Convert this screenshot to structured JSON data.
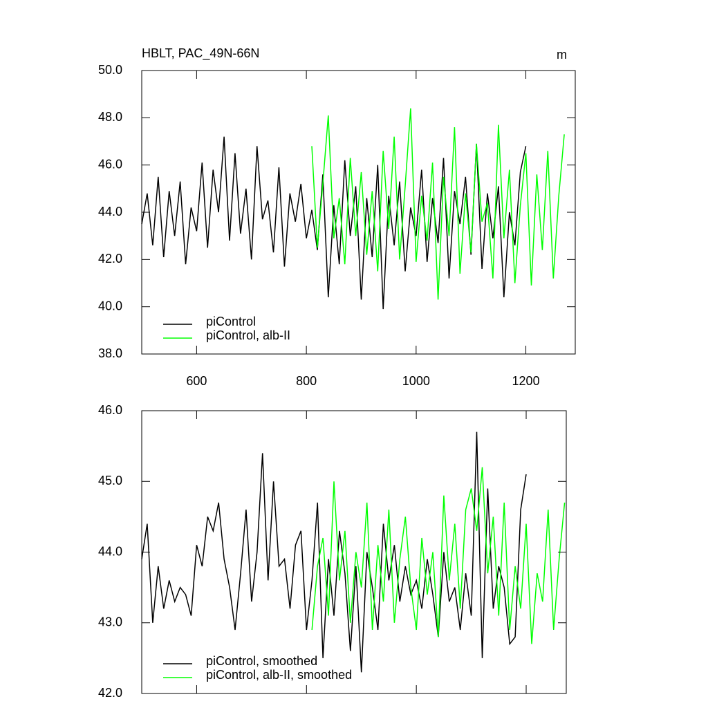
{
  "chart_data": [
    {
      "type": "line",
      "title": "HBLT, PAC_49N-66N",
      "units_label": "m",
      "xlim": [
        500,
        1290
      ],
      "xticks": [
        600,
        800,
        1000,
        1200
      ],
      "show_xtick_labels": true,
      "ylim": [
        38,
        50
      ],
      "yticks": [
        {
          "value": 38,
          "label": "38.0"
        },
        {
          "value": 40,
          "label": "40.0"
        },
        {
          "value": 42,
          "label": "42.0"
        },
        {
          "value": 44,
          "label": "44.0"
        },
        {
          "value": 46,
          "label": "46.0"
        },
        {
          "value": 48,
          "label": "48.0"
        },
        {
          "value": 50,
          "label": "50.0"
        }
      ],
      "legend": "lower left",
      "series": [
        {
          "name": "piControl",
          "color": "#000000",
          "x": [
            500,
            510,
            520,
            530,
            540,
            550,
            560,
            570,
            580,
            590,
            600,
            610,
            620,
            630,
            640,
            650,
            660,
            670,
            680,
            690,
            700,
            710,
            720,
            730,
            740,
            750,
            760,
            770,
            780,
            790,
            800,
            810,
            820,
            830,
            840,
            850,
            860,
            870,
            880,
            890,
            900,
            910,
            920,
            930,
            940,
            950,
            960,
            970,
            980,
            990,
            1000,
            1010,
            1020,
            1030,
            1040,
            1050,
            1060,
            1070,
            1080,
            1090,
            1100,
            1110,
            1120,
            1130,
            1140,
            1150,
            1160,
            1170,
            1180,
            1190,
            1200
          ],
          "values": [
            43.5,
            44.8,
            42.6,
            45.5,
            42.1,
            44.9,
            43.0,
            45.3,
            41.8,
            44.2,
            43.2,
            46.1,
            42.5,
            45.8,
            44.0,
            47.2,
            42.8,
            46.5,
            43.1,
            45.0,
            42.0,
            46.8,
            43.7,
            44.5,
            42.3,
            45.9,
            41.7,
            44.8,
            43.6,
            45.2,
            42.9,
            44.1,
            42.4,
            45.6,
            40.4,
            44.3,
            41.8,
            46.2,
            43.0,
            45.1,
            40.3,
            44.6,
            42.1,
            46.0,
            39.9,
            44.7,
            42.6,
            45.3,
            41.5,
            44.2,
            43.0,
            45.8,
            41.9,
            44.6,
            42.7,
            46.3,
            41.2,
            44.9,
            43.5,
            45.5,
            42.2,
            46.9,
            41.6,
            44.8,
            42.9,
            45.1,
            40.4,
            44.0,
            42.6,
            45.7,
            46.8
          ]
        },
        {
          "name": "piControl, alb-II",
          "color": "#00ff00",
          "x": [
            810,
            820,
            830,
            840,
            850,
            860,
            870,
            880,
            890,
            900,
            910,
            920,
            930,
            940,
            950,
            960,
            970,
            980,
            990,
            1000,
            1010,
            1020,
            1030,
            1040,
            1050,
            1060,
            1070,
            1080,
            1090,
            1100,
            1110,
            1120,
            1130,
            1140,
            1150,
            1160,
            1170,
            1180,
            1190,
            1200,
            1210,
            1220,
            1230,
            1240,
            1250,
            1260,
            1270
          ],
          "values": [
            46.8,
            42.5,
            45.2,
            48.1,
            42.9,
            44.6,
            41.8,
            46.3,
            43.0,
            45.7,
            42.2,
            44.9,
            41.5,
            46.6,
            43.3,
            47.2,
            42.0,
            45.1,
            48.4,
            41.9,
            44.7,
            42.8,
            46.1,
            40.3,
            45.5,
            43.0,
            47.6,
            41.4,
            44.8,
            42.3,
            46.9,
            43.6,
            44.4,
            41.2,
            47.7,
            42.9,
            45.8,
            41.0,
            44.3,
            46.5,
            40.9,
            45.6,
            42.4,
            46.6,
            41.2,
            44.7,
            47.3
          ]
        }
      ]
    },
    {
      "type": "line",
      "xlim": [
        500,
        1273
      ],
      "xticks": [
        600,
        800,
        1000,
        1200
      ],
      "show_xtick_labels": false,
      "ylim": [
        42,
        46
      ],
      "yticks": [
        {
          "value": 42,
          "label": "42.0"
        },
        {
          "value": 43,
          "label": "43.0"
        },
        {
          "value": 44,
          "label": "44.0"
        },
        {
          "value": 45,
          "label": "45.0"
        },
        {
          "value": 46,
          "label": "46.0"
        }
      ],
      "legend": "lower left",
      "series": [
        {
          "name": "piControl, smoothed",
          "color": "#000000",
          "x": [
            500,
            510,
            520,
            530,
            540,
            550,
            560,
            570,
            580,
            590,
            600,
            610,
            620,
            630,
            640,
            650,
            660,
            670,
            680,
            690,
            700,
            710,
            720,
            730,
            740,
            750,
            760,
            770,
            780,
            790,
            800,
            810,
            820,
            830,
            840,
            850,
            860,
            870,
            880,
            890,
            900,
            910,
            920,
            930,
            940,
            950,
            960,
            970,
            980,
            990,
            1000,
            1010,
            1020,
            1030,
            1040,
            1050,
            1060,
            1070,
            1080,
            1090,
            1100,
            1110,
            1120,
            1130,
            1140,
            1150,
            1160,
            1170,
            1180,
            1190,
            1200
          ],
          "values": [
            43.9,
            44.4,
            43.0,
            43.8,
            43.2,
            43.6,
            43.3,
            43.5,
            43.4,
            43.1,
            44.1,
            43.8,
            44.5,
            44.3,
            44.7,
            43.9,
            43.5,
            42.9,
            43.7,
            44.6,
            43.3,
            44.0,
            45.4,
            43.6,
            45.0,
            43.8,
            43.9,
            43.2,
            44.1,
            44.3,
            42.9,
            43.6,
            44.7,
            42.5,
            43.9,
            43.1,
            44.3,
            43.7,
            42.6,
            43.8,
            42.3,
            44.0,
            43.5,
            42.9,
            44.4,
            43.6,
            44.1,
            43.3,
            43.8,
            43.4,
            43.6,
            43.2,
            43.9,
            43.4,
            42.8,
            44.0,
            43.3,
            43.5,
            42.9,
            43.7,
            43.1,
            45.7,
            42.5,
            44.9,
            43.2,
            43.8,
            43.5,
            42.7,
            42.8,
            44.6,
            45.1
          ]
        },
        {
          "name": "piControl, alb-II, smoothed",
          "color": "#00ff00",
          "x": [
            810,
            820,
            830,
            840,
            850,
            860,
            870,
            880,
            890,
            900,
            910,
            920,
            930,
            940,
            950,
            960,
            970,
            980,
            990,
            1000,
            1010,
            1020,
            1030,
            1040,
            1050,
            1060,
            1070,
            1080,
            1090,
            1100,
            1110,
            1120,
            1130,
            1140,
            1150,
            1160,
            1170,
            1180,
            1190,
            1200,
            1210,
            1220,
            1230,
            1240,
            1250,
            1260,
            1270
          ],
          "values": [
            42.9,
            43.8,
            44.2,
            43.1,
            45.0,
            43.6,
            44.3,
            43.0,
            44.0,
            43.5,
            44.7,
            42.9,
            44.1,
            43.3,
            44.6,
            43.0,
            43.9,
            44.5,
            43.5,
            42.9,
            44.2,
            43.4,
            44.0,
            42.8,
            44.8,
            43.6,
            44.4,
            43.2,
            44.6,
            44.9,
            44.3,
            45.2,
            43.7,
            44.5,
            43.1,
            44.7,
            42.9,
            43.8,
            43.2,
            44.4,
            42.7,
            43.7,
            43.3,
            44.6,
            42.9,
            43.9,
            44.7
          ]
        }
      ]
    }
  ]
}
